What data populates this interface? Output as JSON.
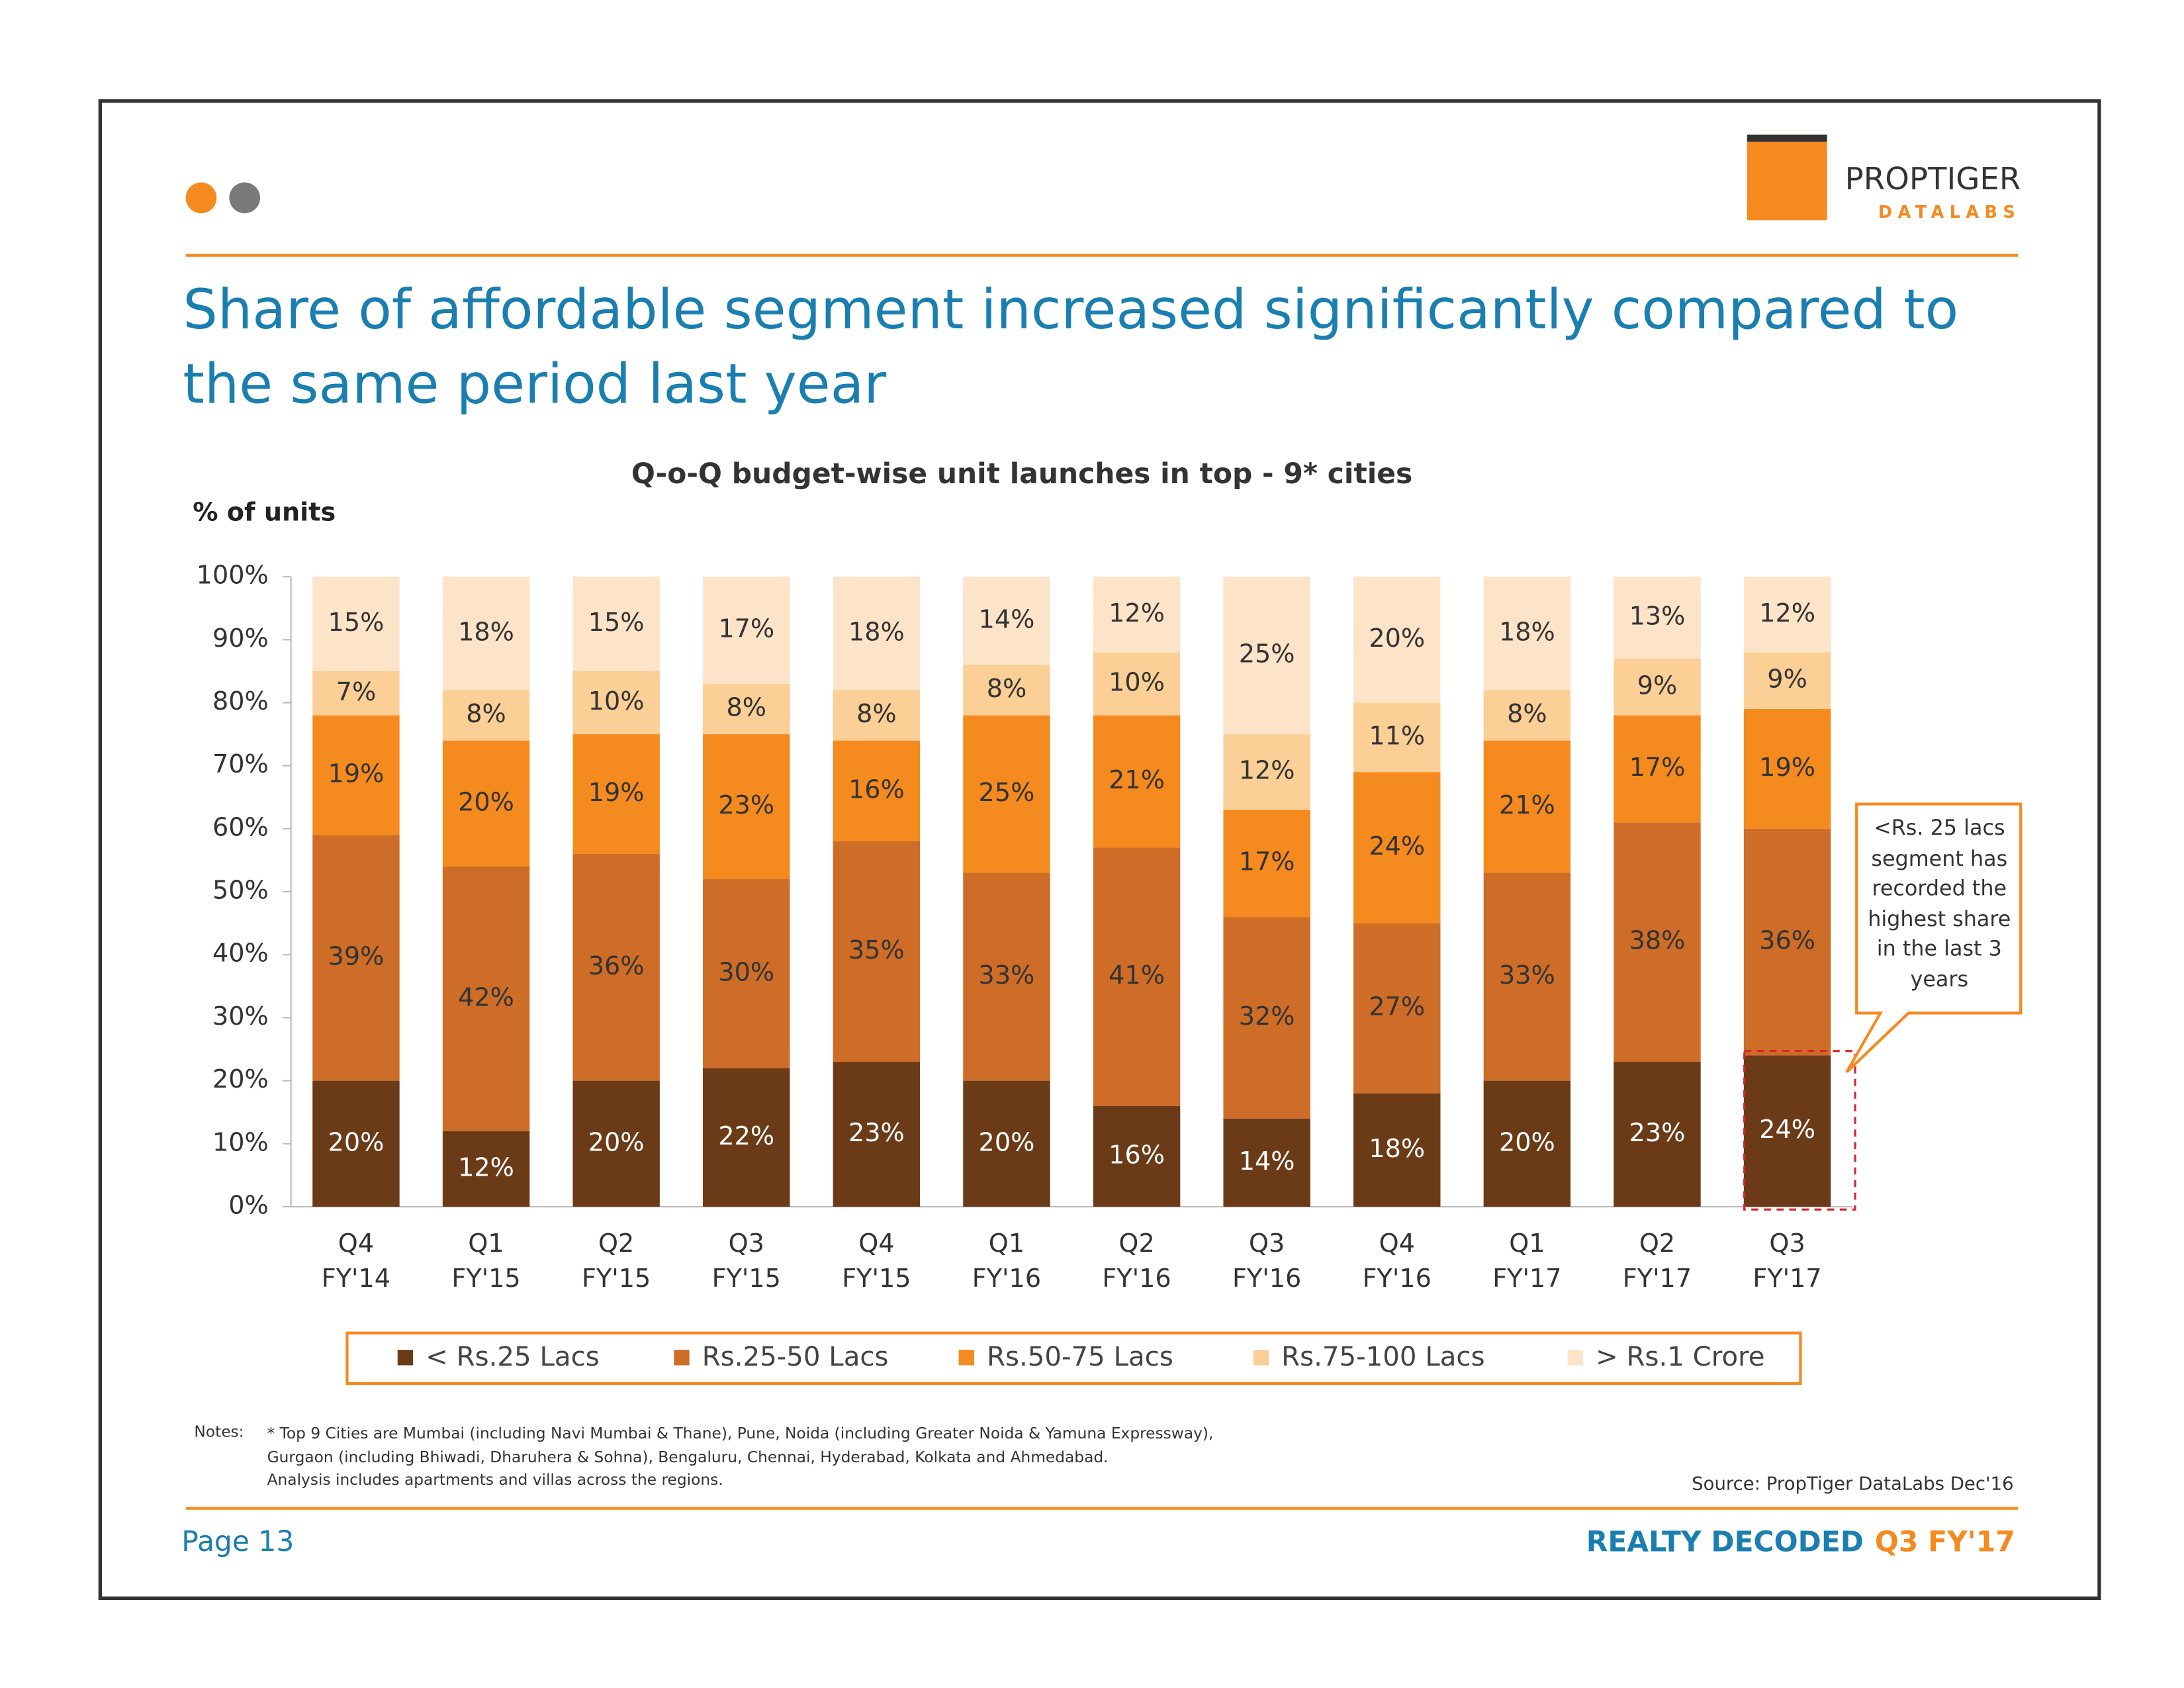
{
  "page": {
    "logo_top": "PROPTIGER",
    "logo_bottom": "DATALABS",
    "headline": "Share of affordable segment increased significantly compared to the same period last year",
    "notes_label": "Notes:",
    "notes": [
      "* Top 9 Cities are Mumbai (including Navi Mumbai & Thane), Pune, Noida (including Greater Noida & Yamuna Expressway),",
      "Gurgaon (including Bhiwadi, Dharuhera & Sohna), Bengaluru, Chennai, Hyderabad, Kolkata and Ahmedabad.",
      "Analysis includes apartments and villas across the regions."
    ],
    "source": "Source: PropTiger DataLabs Dec'16",
    "page_number": "Page 13",
    "footer_brand": "REALTY DECODED",
    "footer_edition": "Q3 FY'17"
  },
  "chart_data": {
    "type": "stacked_bar",
    "title": "Q-o-Q budget-wise unit launches in top - 9* cities",
    "y_label": "% of units",
    "annotation": "<Rs. 25 lacs segment has recorded the highest share in the last 3 years",
    "categories": [
      "Q4 FY'14",
      "Q1 FY'15",
      "Q2 FY'15",
      "Q3 FY'15",
      "Q4 FY'15",
      "Q1 FY'16",
      "Q2 FY'16",
      "Q3 FY'16",
      "Q4 FY'16",
      "Q1 FY'17",
      "Q2 FY'17",
      "Q3 FY'17"
    ],
    "ylim": [
      0,
      100
    ],
    "yticks": [
      {
        "value": 0,
        "label": "0%"
      },
      {
        "value": 10,
        "label": "10%"
      },
      {
        "value": 20,
        "label": "20%"
      },
      {
        "value": 30,
        "label": "30%"
      },
      {
        "value": 40,
        "label": "40%"
      },
      {
        "value": 50,
        "label": "50%"
      },
      {
        "value": 60,
        "label": "60%"
      },
      {
        "value": 70,
        "label": "70%"
      },
      {
        "value": 80,
        "label": "80%"
      },
      {
        "value": 90,
        "label": "90%"
      },
      {
        "value": 100,
        "label": "100%"
      }
    ],
    "series": [
      {
        "name": "< Rs.25 Lacs",
        "color": "#6b3a17",
        "values": [
          20,
          12,
          20,
          22,
          23,
          20,
          16,
          14,
          18,
          20,
          23,
          24
        ],
        "value_labels": [
          "20%",
          "12%",
          "20%",
          "22%",
          "23%",
          "20%",
          "16%",
          "14%",
          "18%",
          "20%",
          "23%",
          "24%"
        ]
      },
      {
        "name": "Rs.25-50 Lacs",
        "color": "#cd6d27",
        "values": [
          39,
          42,
          36,
          30,
          35,
          33,
          41,
          32,
          27,
          33,
          38,
          36
        ],
        "value_labels": [
          "39%",
          "42%",
          "36%",
          "30%",
          "35%",
          "33%",
          "41%",
          "32%",
          "27%",
          "33%",
          "38%",
          "36%"
        ]
      },
      {
        "name": "Rs.50-75 Lacs",
        "color": "#f58a1f",
        "values": [
          19,
          20,
          19,
          23,
          16,
          25,
          21,
          17,
          24,
          21,
          17,
          19
        ],
        "value_labels": [
          "19%",
          "20%",
          "19%",
          "23%",
          "16%",
          "25%",
          "21%",
          "17%",
          "24%",
          "21%",
          "17%",
          "19%"
        ]
      },
      {
        "name": "Rs.75-100 Lacs",
        "color": "#fbcf95",
        "values": [
          7,
          8,
          10,
          8,
          8,
          8,
          10,
          12,
          11,
          8,
          9,
          9
        ],
        "value_labels": [
          "7%",
          "8%",
          "10%",
          "8%",
          "8%",
          "8%",
          "10%",
          "12%",
          "11%",
          "8%",
          "9%",
          "9%"
        ]
      },
      {
        "name": "> Rs.1 Crore",
        "color": "#fde4c8",
        "values": [
          15,
          18,
          15,
          17,
          18,
          14,
          12,
          25,
          20,
          18,
          13,
          12
        ],
        "value_labels": [
          "15%",
          "18%",
          "15%",
          "17%",
          "18%",
          "14%",
          "12%",
          "25%",
          "20%",
          "18%",
          "13%",
          "12%"
        ]
      }
    ]
  }
}
